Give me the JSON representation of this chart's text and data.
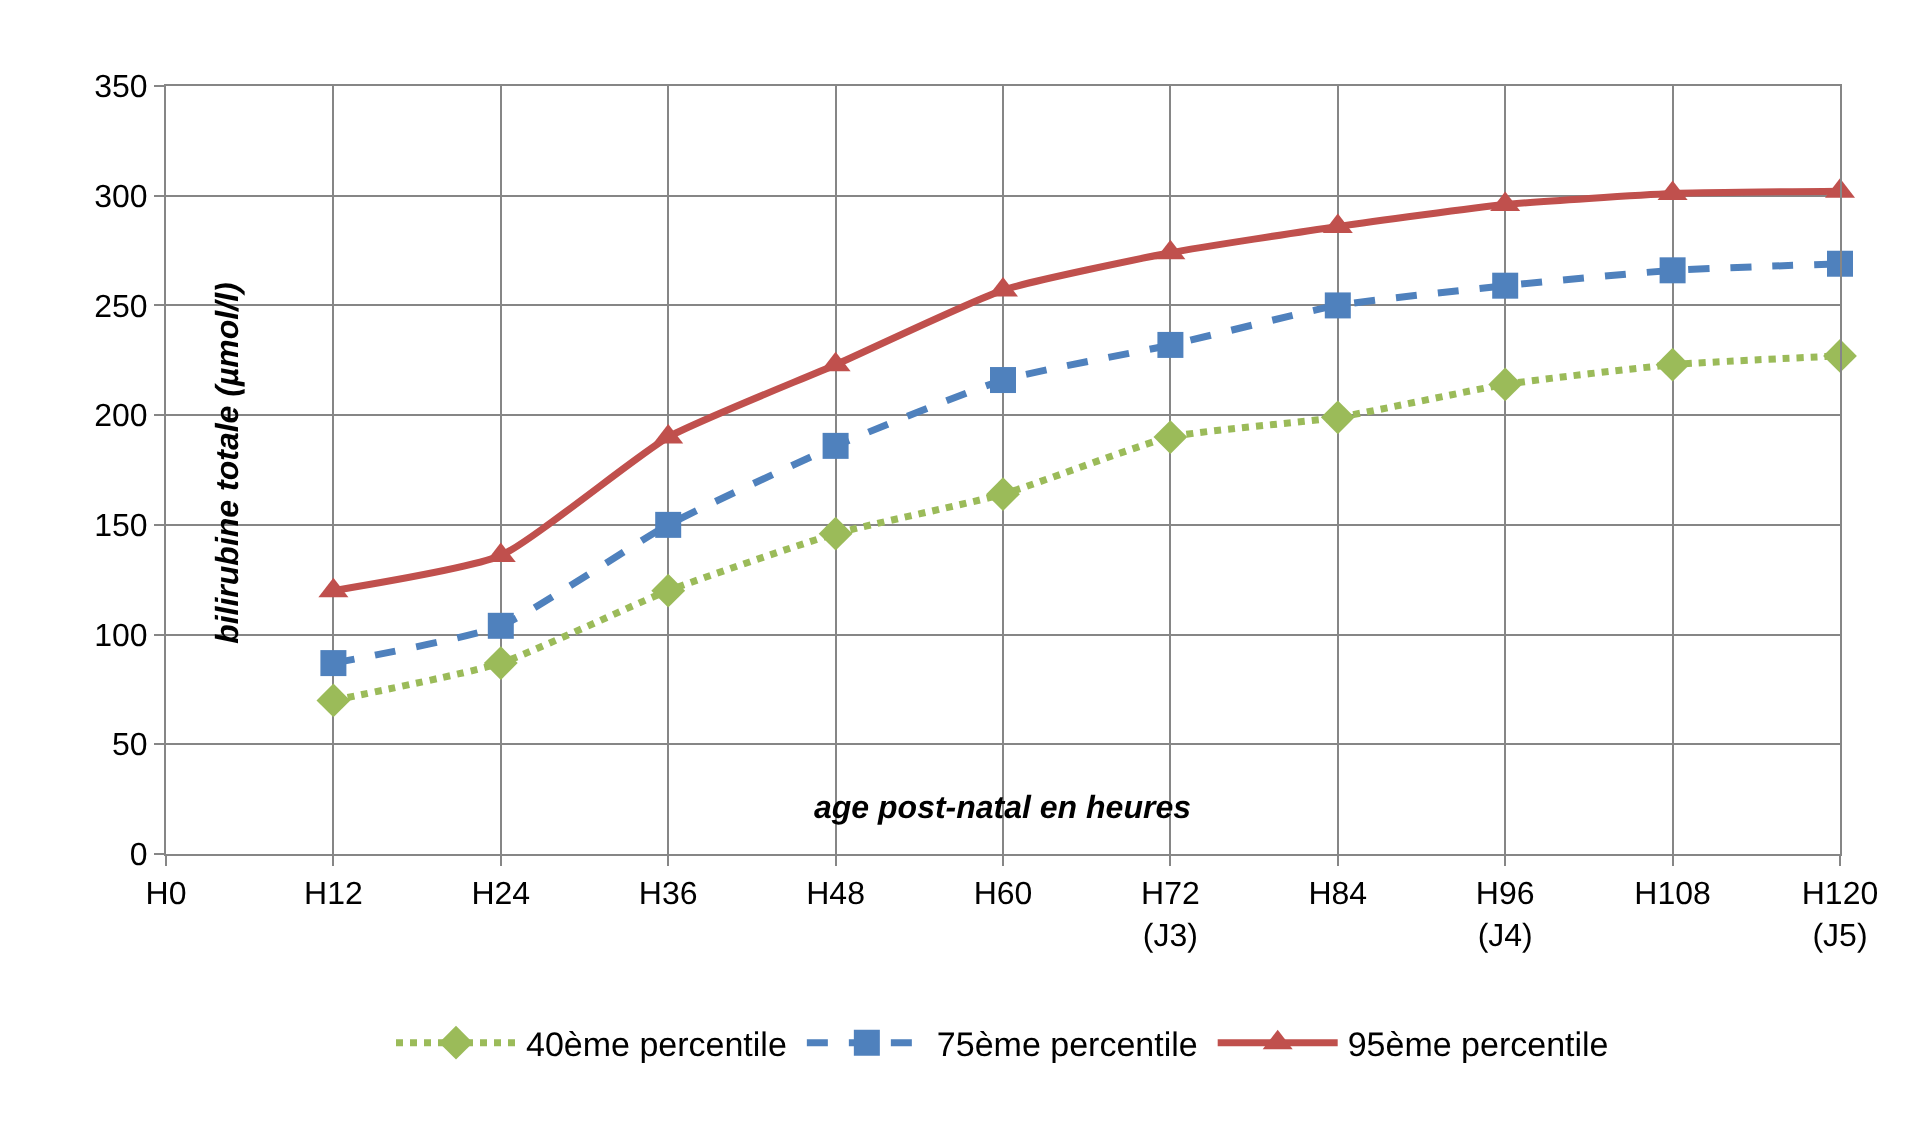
{
  "chart_data": {
    "type": "line",
    "xlabel": "age post-natal en heures",
    "ylabel": "bilirubine totale (µmol/l)",
    "categories": [
      "H0",
      "H12",
      "H24",
      "H36",
      "H48",
      "H60",
      "H72\n(J3)",
      "H84",
      "H96\n(J4)",
      "H108",
      "H120\n(J5)"
    ],
    "series": [
      {
        "name": "40ème percentile",
        "color": "#9bbb59",
        "marker": "diamond",
        "line_style": "dotted",
        "values": [
          null,
          70,
          87,
          120,
          146,
          164,
          190,
          199,
          214,
          223,
          227
        ]
      },
      {
        "name": "75ème percentile",
        "color": "#4f81bd",
        "marker": "square",
        "line_style": "dashed",
        "values": [
          null,
          87,
          104,
          150,
          186,
          216,
          232,
          250,
          259,
          266,
          269
        ]
      },
      {
        "name": "95ème percentile",
        "color": "#c0504d",
        "marker": "triangle",
        "line_style": "solid",
        "values": [
          null,
          120,
          136,
          190,
          223,
          257,
          274,
          286,
          296,
          301,
          302
        ]
      }
    ],
    "ylim": [
      0,
      350
    ],
    "yticks": [
      0,
      50,
      100,
      150,
      200,
      250,
      300,
      350
    ],
    "grid": true,
    "legend": "bottom"
  }
}
